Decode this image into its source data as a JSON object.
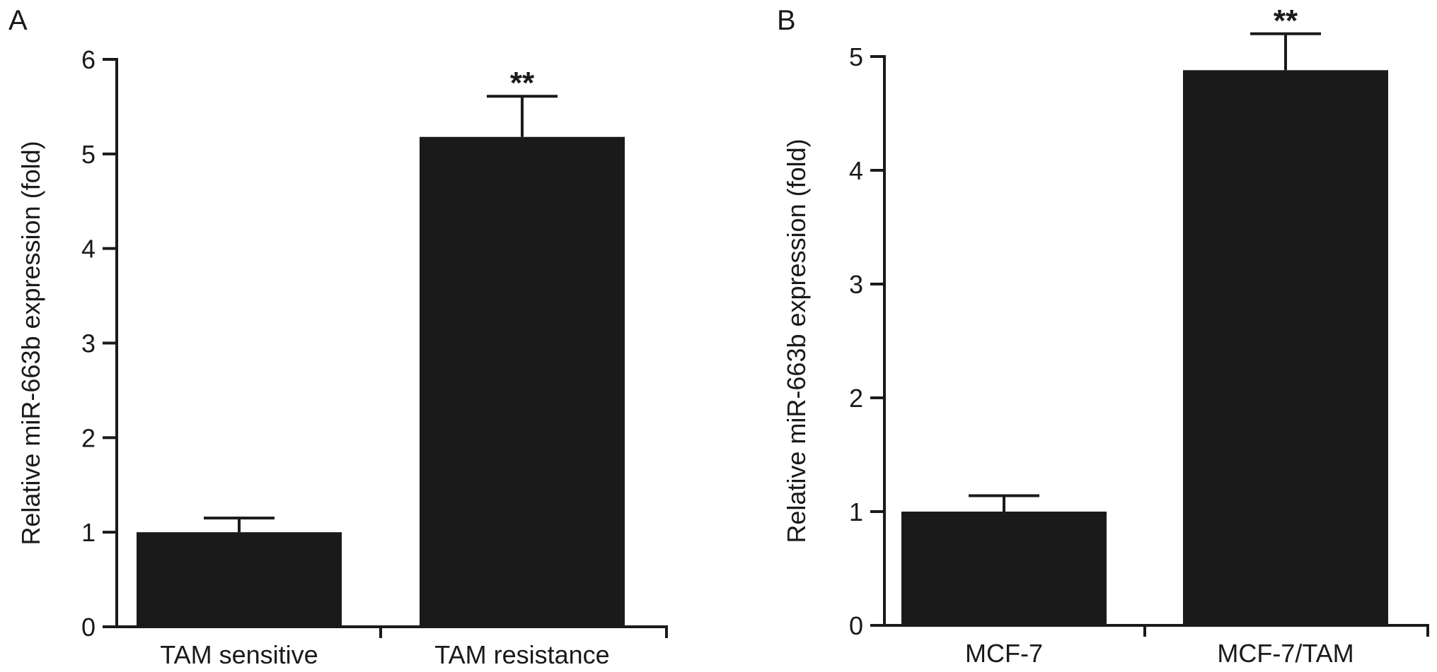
{
  "chart_data": [
    {
      "panel": "A",
      "type": "bar",
      "ylabel": "Relative miR-663b expression (fold)",
      "ylim": [
        0,
        6
      ],
      "yticks": [
        0,
        1,
        2,
        3,
        4,
        5,
        6
      ],
      "categories": [
        "TAM sensitive",
        "TAM resistance"
      ],
      "values": [
        1.0,
        5.18
      ],
      "errors": [
        0.15,
        0.43
      ],
      "significance": [
        "",
        "**"
      ],
      "bar_color": "#1a1a1a"
    },
    {
      "panel": "B",
      "type": "bar",
      "ylabel": "Relative miR-663b expression (fold)",
      "ylim": [
        0,
        5
      ],
      "yticks": [
        0,
        1,
        2,
        3,
        4,
        5
      ],
      "categories": [
        "MCF-7",
        "MCF-7/TAM"
      ],
      "values": [
        1.0,
        4.88
      ],
      "errors": [
        0.14,
        0.32
      ],
      "significance": [
        "",
        "**"
      ],
      "bar_color": "#1a1a1a"
    }
  ]
}
